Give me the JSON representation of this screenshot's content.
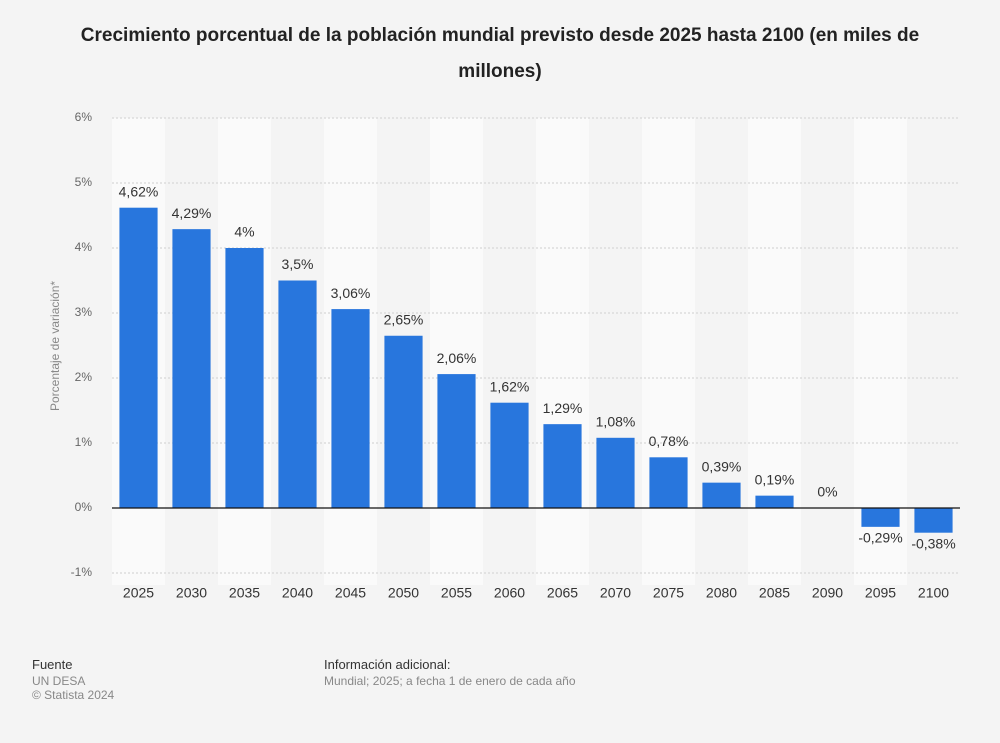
{
  "chart_data": {
    "type": "bar",
    "title": "Crecimiento porcentual de la población mundial previsto desde 2025 hasta 2100 (en miles de millones)",
    "y_label": "Porcentaje de variación*",
    "categories": [
      "2025",
      "2030",
      "2035",
      "2040",
      "2045",
      "2050",
      "2055",
      "2060",
      "2065",
      "2070",
      "2075",
      "2080",
      "2085",
      "2090",
      "2095",
      "2100"
    ],
    "values": [
      4.62,
      4.29,
      4,
      3.5,
      3.06,
      2.65,
      2.06,
      1.62,
      1.29,
      1.08,
      0.78,
      0.39,
      0.19,
      0,
      -0.29,
      -0.38
    ],
    "value_labels": [
      "4,62%",
      "4,29%",
      "4%",
      "3,5%",
      "3,06%",
      "2,65%",
      "2,06%",
      "1,62%",
      "1,29%",
      "1,08%",
      "0,78%",
      "0,39%",
      "0,19%",
      "0%",
      "-0,29%",
      "-0,38%"
    ],
    "color": "#2876dd",
    "ylim": [
      -1,
      6
    ],
    "yticks": [
      {
        "value": -1,
        "label": "-1%"
      },
      {
        "value": 0,
        "label": "0%"
      },
      {
        "value": 1,
        "label": "1%"
      },
      {
        "value": 2,
        "label": "2%"
      },
      {
        "value": 3,
        "label": "3%"
      },
      {
        "value": 4,
        "label": "4%"
      },
      {
        "value": 5,
        "label": "5%"
      },
      {
        "value": 6,
        "label": "6%"
      }
    ],
    "grid": true
  },
  "footer": {
    "source_title": "Fuente",
    "source": "UN DESA",
    "copyright": "© Statista 2024",
    "info_title": "Información adicional:",
    "info": "Mundial; 2025; a fecha 1 de enero de cada año"
  }
}
